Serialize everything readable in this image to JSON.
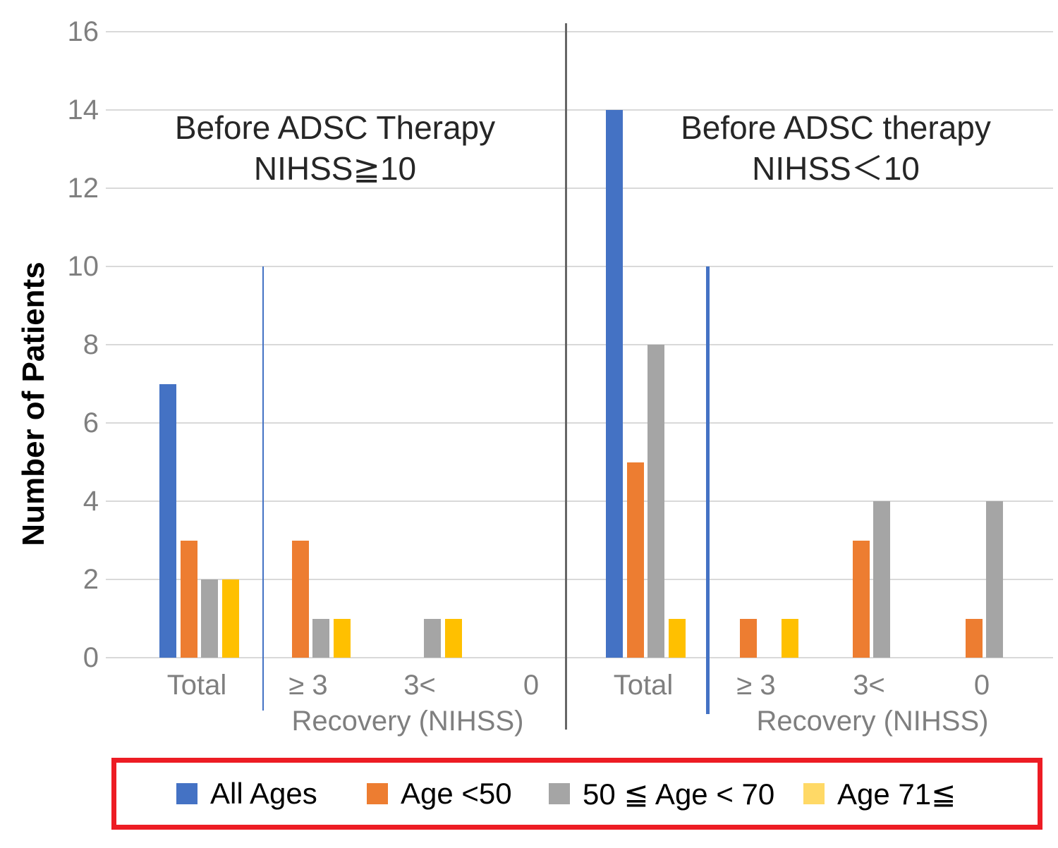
{
  "chart_data": {
    "type": "bar",
    "ylabel": "Number of Patients",
    "ylim": [
      0,
      16
    ],
    "yticks": [
      0,
      2,
      4,
      6,
      8,
      10,
      12,
      14,
      16
    ],
    "grid": true,
    "legend_position": "bottom-red-box",
    "categories": [
      "Total",
      "≥ 3",
      "3<",
      "0"
    ],
    "panels": [
      {
        "title": [
          "Before ADSC Therapy",
          "NIHSS≧10"
        ],
        "xlabel": "Recovery (NIHSS)",
        "categories": [
          "Total",
          "≥ 3",
          "3<",
          "0"
        ],
        "series": [
          {
            "name": "All Ages",
            "color": "#4472C4",
            "values": [
              7,
              0,
              0,
              0
            ]
          },
          {
            "name": "Age <50",
            "color": "#ED7D31",
            "values": [
              3,
              3,
              0,
              0
            ]
          },
          {
            "name": "50 ≦ Age < 70",
            "color": "#A5A5A5",
            "values": [
              2,
              1,
              1,
              0
            ]
          },
          {
            "name": "Age 71≦",
            "color": "#FFC000",
            "values": [
              2,
              1,
              1,
              0
            ]
          }
        ]
      },
      {
        "title": [
          "Before ADSC therapy",
          "NIHSS＜10"
        ],
        "xlabel": "Recovery (NIHSS)",
        "categories": [
          "Total",
          "≥ 3",
          "3<",
          "0"
        ],
        "series": [
          {
            "name": "All Ages",
            "color": "#4472C4",
            "values": [
              14,
              0,
              0,
              0
            ]
          },
          {
            "name": "Age <50",
            "color": "#ED7D31",
            "values": [
              5,
              1,
              3,
              1
            ]
          },
          {
            "name": "50 ≦ Age < 70",
            "color": "#A5A5A5",
            "values": [
              8,
              0,
              4,
              4
            ]
          },
          {
            "name": "Age 71≦",
            "color": "#FFC000",
            "values": [
              1,
              1,
              0,
              0
            ]
          }
        ]
      }
    ],
    "annotations": {
      "panel_divider_color": "#666666",
      "threshold_line_color": "#4472C4",
      "gridline_color": "#D9D9D9",
      "axis_text_color": "#7f7f7f"
    },
    "legend": {
      "border_color": "#ED1C24",
      "entries": [
        {
          "label": "All Ages",
          "color": "#4472C4"
        },
        {
          "label": "Age <50",
          "color": "#ED7D31"
        },
        {
          "label": "50 ≦ Age < 70",
          "color": "#A5A5A5"
        },
        {
          "label": "Age 71≦",
          "color": "#FFD966"
        }
      ]
    }
  }
}
